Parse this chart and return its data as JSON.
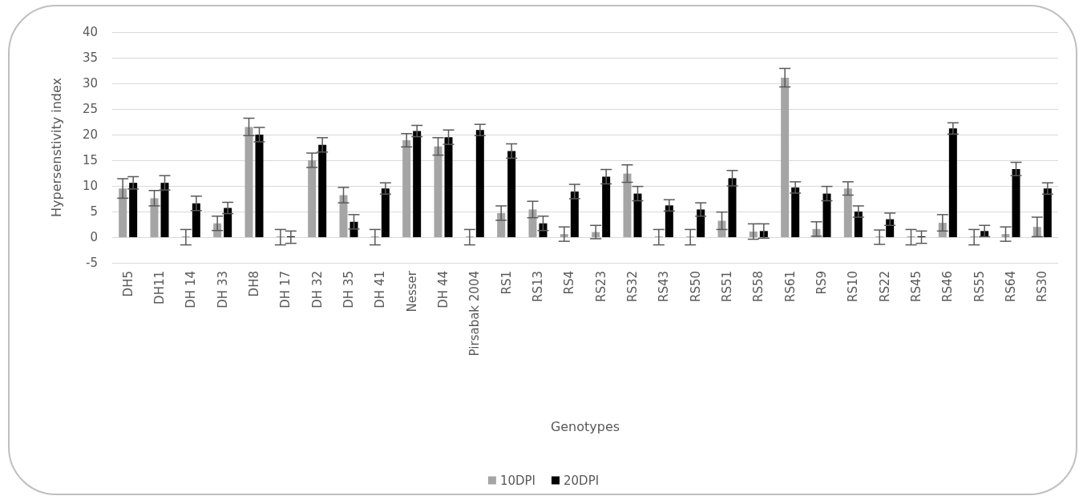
{
  "chart_data": {
    "type": "bar",
    "xlabel": "Genotypes",
    "ylabel": "Hypersenstivity index",
    "categories": [
      "DH5",
      "DH11",
      "DH 14",
      "DH 33",
      "DH8",
      "DH 17",
      "DH 32",
      "DH 35",
      "DH 41",
      "Nesser",
      "DH 44",
      "Pirsabak 2004",
      "RS1",
      "RS13",
      "RS4",
      "RS23",
      "RS32",
      "RS43",
      "RS50",
      "RS51",
      "RS58",
      "RS61",
      "RS9",
      "RS10",
      "RS22",
      "RS45",
      "RS46",
      "RS55",
      "RS64",
      "RS30"
    ],
    "series": [
      {
        "name": "10DPI",
        "color": "#a5a5a5",
        "values": [
          9.5,
          7.6,
          0,
          2.7,
          21.5,
          0,
          15,
          8.2,
          0,
          18.9,
          17.7,
          0,
          4.7,
          5.4,
          0.6,
          1,
          12.4,
          0,
          0,
          3.2,
          1.1,
          31.1,
          1.6,
          9.5,
          0,
          0,
          2.8,
          0,
          0.6,
          2
        ],
        "errors": [
          1.9,
          1.5,
          1.5,
          1.4,
          1.7,
          1.5,
          1.4,
          1.5,
          1.5,
          1.3,
          1.7,
          1.5,
          1.4,
          1.6,
          1.4,
          1.3,
          1.7,
          1.5,
          1.5,
          1.7,
          1.5,
          1.8,
          1.4,
          1.3,
          1.4,
          1.5,
          1.6,
          1.5,
          1.4,
          1.9
        ]
      },
      {
        "name": "20DPI",
        "color": "#000000",
        "values": [
          10.6,
          10.6,
          6.6,
          5.7,
          20,
          0,
          18,
          3,
          9.5,
          20.7,
          19.5,
          20.9,
          16.8,
          2.7,
          8.9,
          11.8,
          8.5,
          6.2,
          5.4,
          11.5,
          1.2,
          9.7,
          8.5,
          5,
          3.5,
          0,
          21.2,
          1.2,
          13.3,
          9.5
        ],
        "errors": [
          1.2,
          1.4,
          1.4,
          1.1,
          1.4,
          1.2,
          1.4,
          1.4,
          1.1,
          1.1,
          1.4,
          1.1,
          1.4,
          1.4,
          1.4,
          1.4,
          1.4,
          1.1,
          1.3,
          1.5,
          1.4,
          1.1,
          1.4,
          1.1,
          1.2,
          1.2,
          1.1,
          1.1,
          1.3,
          1.1
        ]
      }
    ],
    "ylim": [
      -5,
      40
    ],
    "yticks": [
      -5,
      0,
      5,
      10,
      15,
      20,
      25,
      30,
      35,
      40
    ],
    "grid": "y",
    "legend": "bottom"
  }
}
